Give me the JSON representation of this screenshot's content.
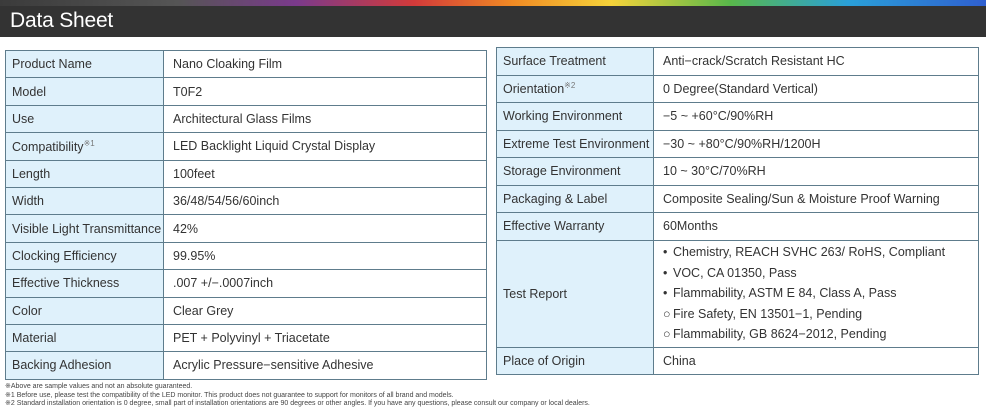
{
  "header": {
    "title": "Data Sheet"
  },
  "left_rows": [
    {
      "label": "Product Name",
      "value": "Nano Cloaking Film"
    },
    {
      "label": "Model",
      "value": "T0F2"
    },
    {
      "label": "Use",
      "value": "Architectural Glass Films"
    },
    {
      "label": "Compatibility",
      "mark": "※1",
      "value": "LED Backlight Liquid Crystal Display"
    },
    {
      "label": "Length",
      "value": "100feet"
    },
    {
      "label": "Width",
      "value": "36/48/54/56/60inch"
    },
    {
      "label": "Visible Light Transmittance",
      "value": "42%"
    },
    {
      "label": "Clocking Efficiency",
      "value": "99.95%"
    },
    {
      "label": "Effective Thickness",
      "value": ".007 +/−.0007inch"
    },
    {
      "label": "Color",
      "value": "Clear Grey"
    },
    {
      "label": "Material",
      "value": "PET + Polyvinyl + Triacetate"
    },
    {
      "label": "Backing Adhesion",
      "value": "Acrylic Pressure−sensitive Adhesive"
    }
  ],
  "right_rows": [
    {
      "label": "Surface Treatment",
      "value": "Anti−crack/Scratch Resistant HC"
    },
    {
      "label": "Orientation",
      "mark": "※2",
      "value": "0 Degree(Standard Vertical)"
    },
    {
      "label": "Working Environment",
      "value": "−5 ~ +60°C/90%RH"
    },
    {
      "label": "Extreme Test Environment",
      "value": "−30 ~ +80°C/90%RH/1200H"
    },
    {
      "label": "Storage Environment",
      "value": "10 ~ 30°C/70%RH"
    },
    {
      "label": "Packaging & Label",
      "value": "Composite Sealing/Sun & Moisture Proof Warning"
    },
    {
      "label": "Effective Warranty",
      "value": "60Months"
    }
  ],
  "test_report": {
    "label": "Test Report",
    "items": [
      {
        "bullet": "•",
        "text": "Chemistry, REACH SVHC 263/ RoHS, Compliant"
      },
      {
        "bullet": "•",
        "text": "VOC, CA 01350, Pass"
      },
      {
        "bullet": "•",
        "text": "Flammability, ASTM E 84, Class A, Pass"
      },
      {
        "bullet": "○",
        "text": "Fire Safety, EN 13501−1, Pending"
      },
      {
        "bullet": "○",
        "text": "Flammability, GB 8624−2012, Pending"
      }
    ]
  },
  "origin": {
    "label": "Place of Origin",
    "value": "China"
  },
  "notes": [
    "※Above are sample values and not an absolute guaranteed.",
    "※1 Before use, please test the compatibility of the LED monitor. This product does not guarantee to support for monitors of all brand and models.",
    "※2 Standard installation orientation is 0 degree, small part of installation orientations are 90 degrees or other angles. If you have any questions, please consult our company or local dealers."
  ]
}
